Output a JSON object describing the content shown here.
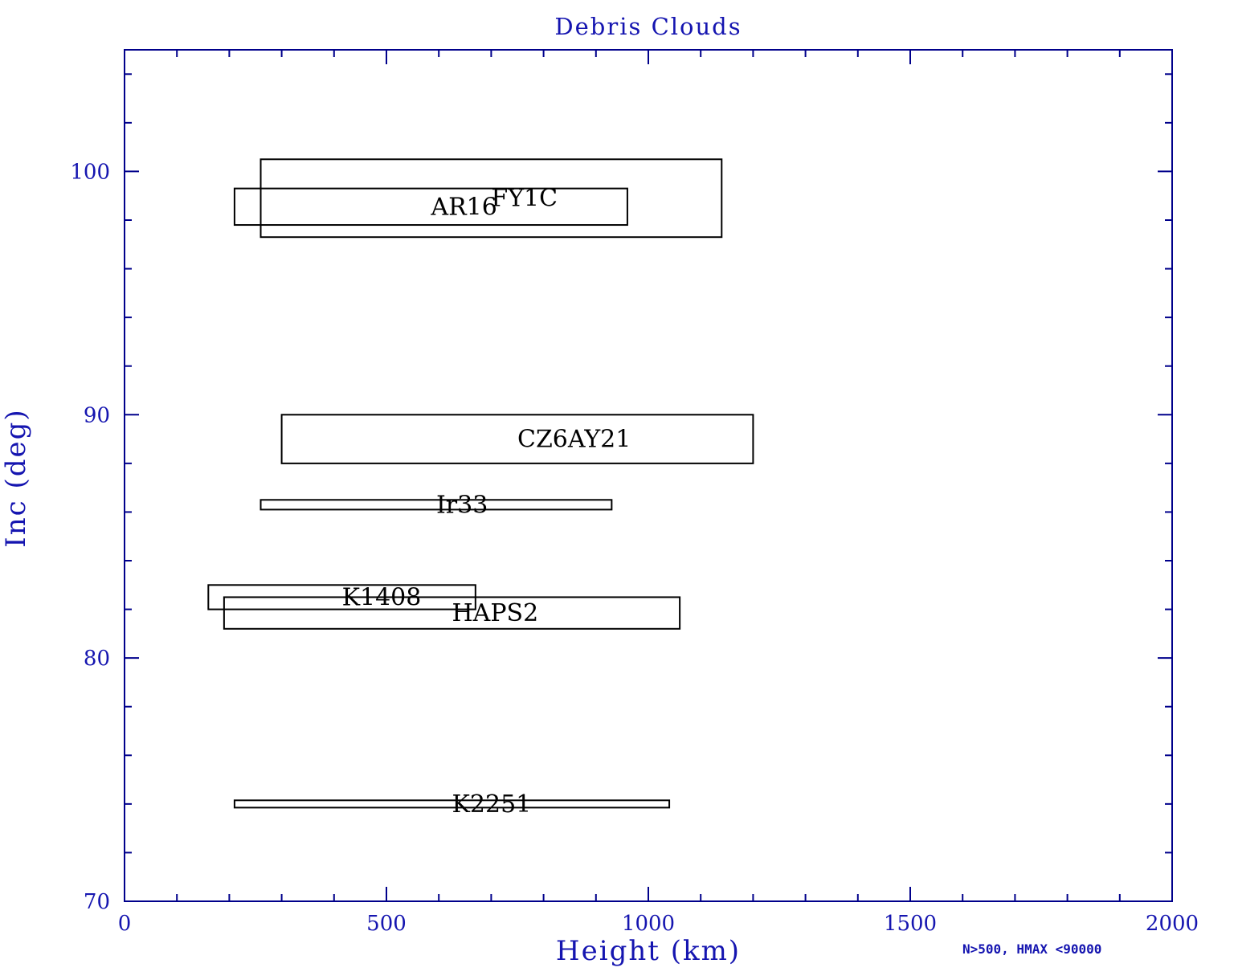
{
  "chart_data": {
    "type": "bar",
    "subtype": "2d-range-boxes",
    "title": "Debris Clouds",
    "xlabel": "Height (km)",
    "ylabel": "Inc (deg)",
    "annotation": "N>500, HMAX <90000",
    "xlim": [
      0,
      2000
    ],
    "ylim": [
      70,
      105
    ],
    "x_major_ticks": [
      0,
      500,
      1000,
      1500,
      2000
    ],
    "x_tick_labels": [
      "0",
      "500",
      "1000",
      "1500",
      "2000"
    ],
    "x_minor_step": 100,
    "y_major_ticks": [
      70,
      80,
      90,
      100
    ],
    "y_tick_labels": [
      "70",
      "80",
      "90",
      "100"
    ],
    "y_minor_step": 2,
    "grid": false,
    "legend": "none",
    "boxes": [
      {
        "name": "FY1C",
        "height_km": [
          260,
          1140
        ],
        "inc_deg": [
          97.3,
          100.5
        ]
      },
      {
        "name": "AR16",
        "height_km": [
          210,
          960
        ],
        "inc_deg": [
          97.8,
          99.3
        ]
      },
      {
        "name": "CZ6AY21",
        "height_km": [
          300,
          1200
        ],
        "inc_deg": [
          88.0,
          90.0
        ]
      },
      {
        "name": "Ir33",
        "height_km": [
          260,
          930
        ],
        "inc_deg": [
          86.1,
          86.5
        ]
      },
      {
        "name": "K1408",
        "height_km": [
          160,
          670
        ],
        "inc_deg": [
          82.0,
          83.0
        ]
      },
      {
        "name": "HAPS2",
        "height_km": [
          190,
          1060
        ],
        "inc_deg": [
          81.2,
          82.5
        ]
      },
      {
        "name": "K2251",
        "height_km": [
          210,
          1040
        ],
        "inc_deg": [
          73.85,
          74.15
        ]
      }
    ]
  },
  "colors": {
    "axis": "#00008b",
    "blue_text": "#1515b0",
    "box_stroke": "#000000",
    "box_label": "#000000",
    "background": "#ffffff"
  }
}
